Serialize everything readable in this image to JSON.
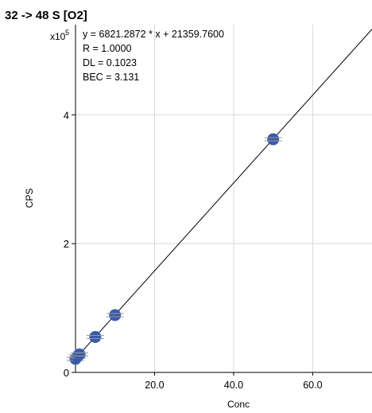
{
  "chart_data": {
    "type": "scatter",
    "title": "32 -> 48 S [O2]",
    "xlabel": "Conc",
    "ylabel": "CPS",
    "y_multiplier_label": "x10",
    "y_multiplier_exp": "5",
    "xlim": [
      0,
      75
    ],
    "ylim": [
      0,
      5.4
    ],
    "x_ticks": [
      20.0,
      40.0,
      60.0
    ],
    "x_tick_labels": [
      "20.0",
      "40.0",
      "60.0"
    ],
    "y_ticks": [
      0,
      2,
      4
    ],
    "y_tick_labels": [
      "0",
      "2",
      "4"
    ],
    "grid": true,
    "annotations": [
      "y = 6821.2872 * x  + 21359.7600",
      "R =  1.0000",
      "DL = 0.1023",
      "BEC = 3.131"
    ],
    "fit_line": {
      "slope": 6821.2872,
      "intercept": 21359.76,
      "units_scale": 100000
    },
    "points": [
      {
        "x": 0,
        "y": 0.21
      },
      {
        "x": 0.5,
        "y": 0.25
      },
      {
        "x": 1,
        "y": 0.28
      },
      {
        "x": 5,
        "y": 0.55
      },
      {
        "x": 10,
        "y": 0.89
      },
      {
        "x": 50,
        "y": 3.62
      }
    ],
    "point_color": "#3a5ba8",
    "line_color": "#000000",
    "grid_color": "#d8d8d8"
  }
}
